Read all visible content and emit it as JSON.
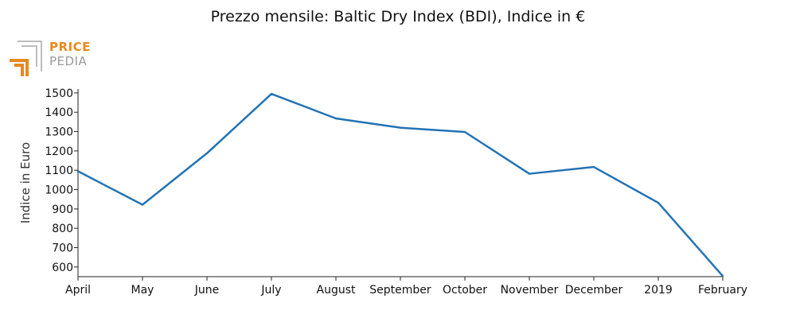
{
  "title": "Prezzo mensile: Baltic Dry Index (BDI), Indice in €",
  "logo": {
    "line1": "PRICE",
    "line2": "PEDIA"
  },
  "colors": {
    "line": "#2273b5",
    "logo_orange": "#e8891e",
    "logo_gray": "#9a9a9a"
  },
  "chart_data": {
    "type": "line",
    "title": "Prezzo mensile: Baltic Dry Index (BDI), Indice in €",
    "xlabel": "",
    "ylabel": "Indice in Euro",
    "categories": [
      "April",
      "May",
      "June",
      "July",
      "August",
      "September",
      "October",
      "November",
      "December",
      "2019",
      "February"
    ],
    "series": [
      {
        "values": [
          1095,
          922,
          1188,
          1495,
          1368,
          1320,
          1298,
          1082,
          1117,
          932,
          553
        ]
      }
    ],
    "ylim": [
      550,
      1520
    ],
    "yticks": [
      600,
      700,
      800,
      900,
      1000,
      1100,
      1200,
      1300,
      1400,
      1500
    ],
    "grid": false,
    "legend": "none"
  }
}
